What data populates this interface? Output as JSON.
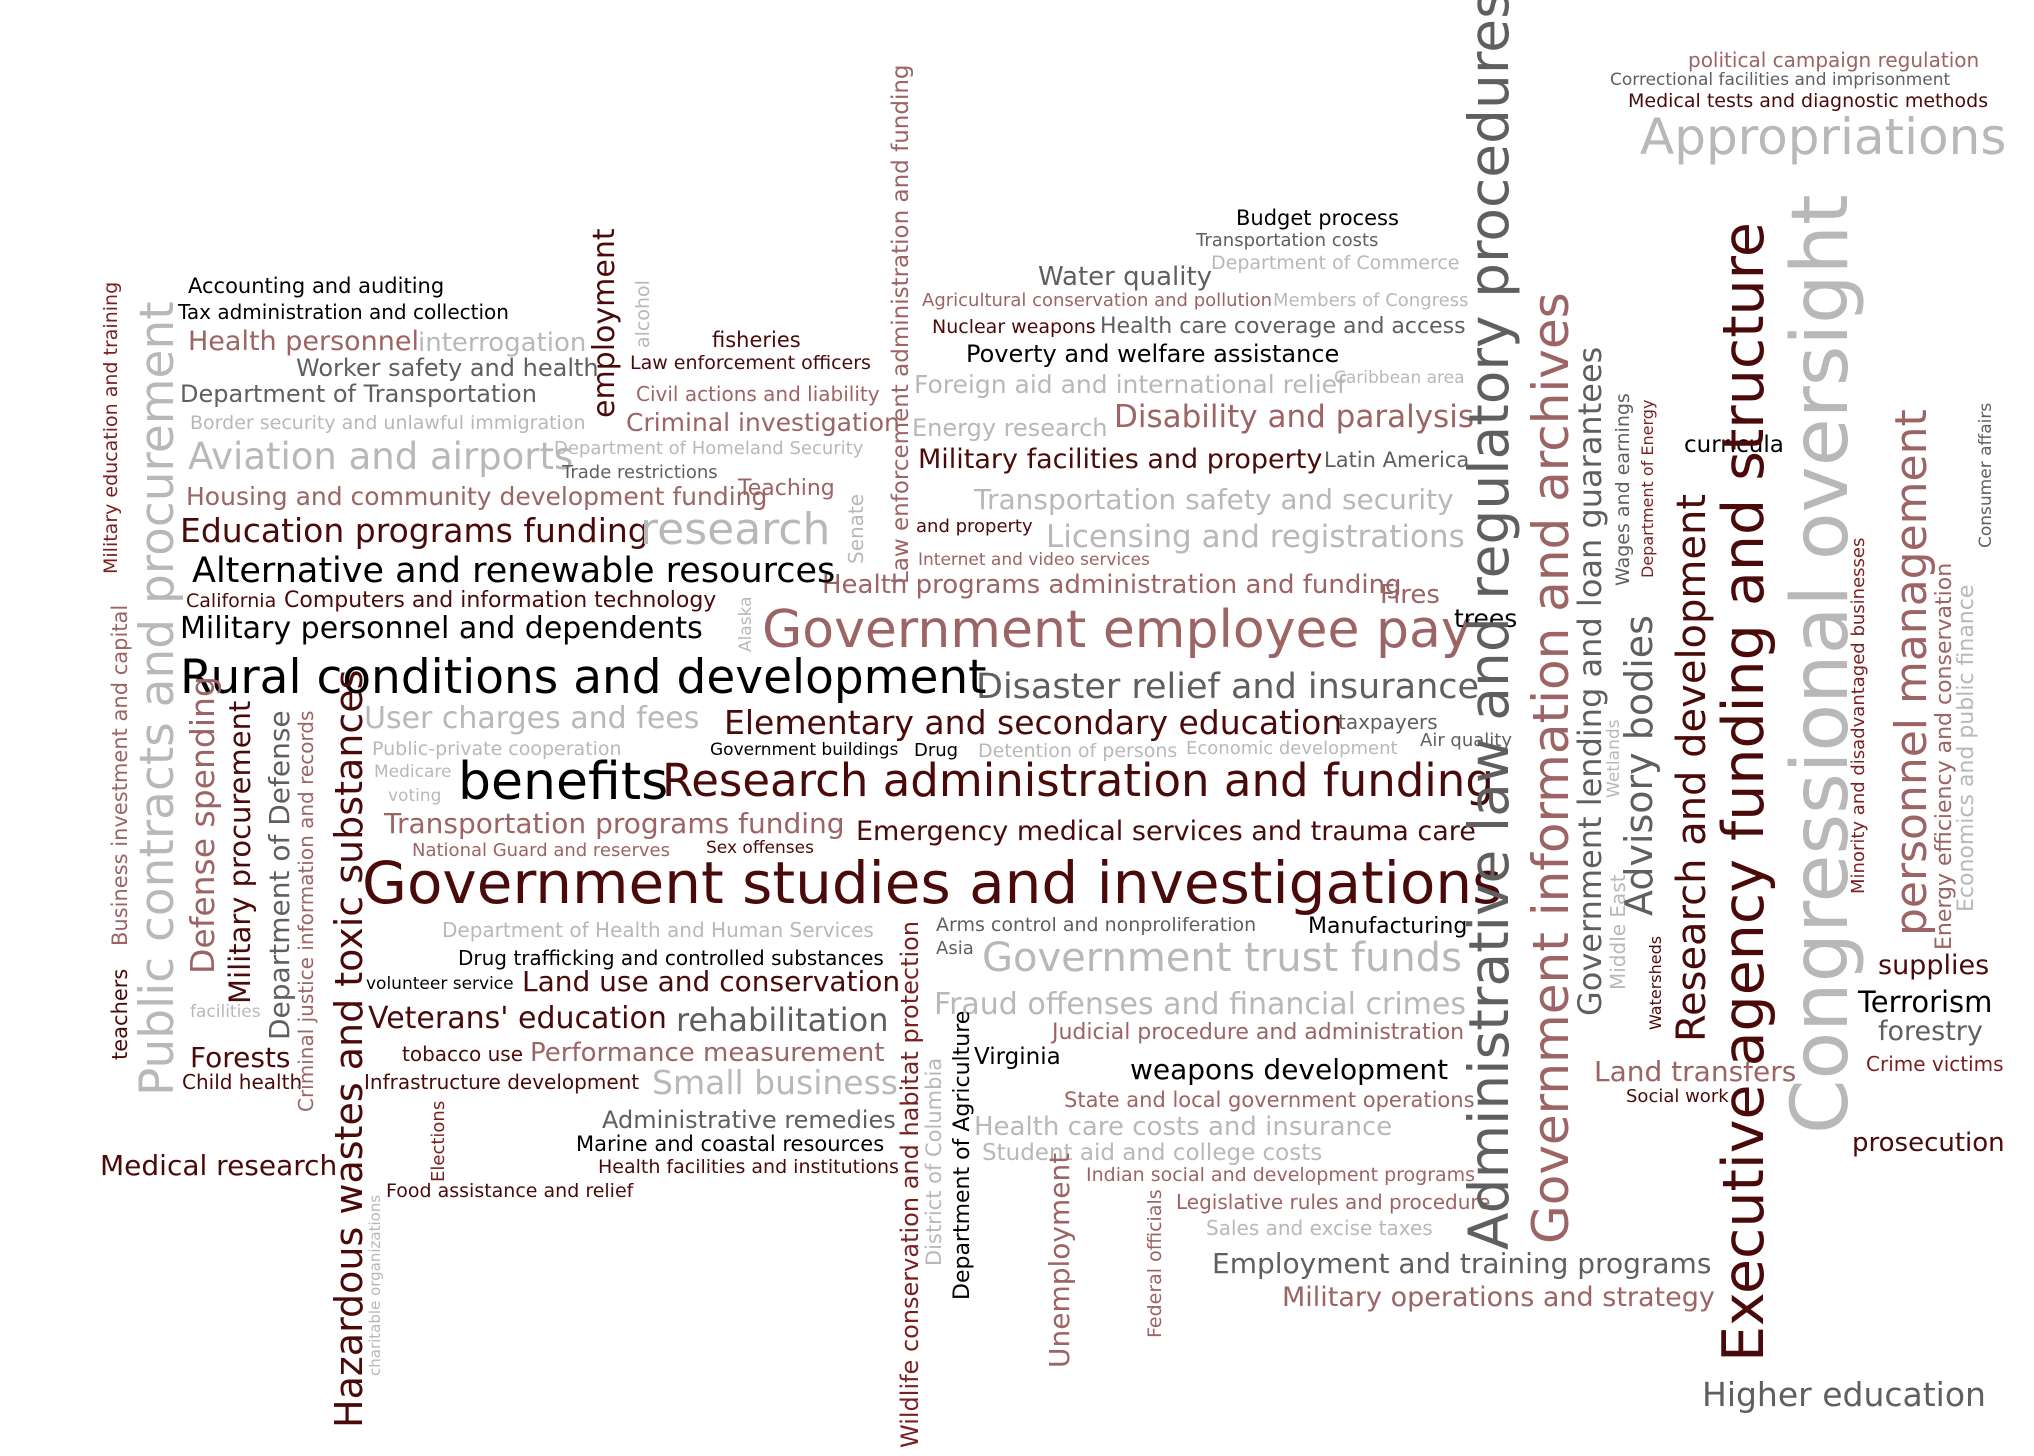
{
  "colors": {
    "c1": "#4a0a0a",
    "c2": "#7a1f1f",
    "c3": "#9c6464",
    "c4": "#5f5f5f",
    "c5": "#b8b8b8",
    "c6": "#000000"
  },
  "words": [
    "political campaign regulation",
    "Correctional facilities and imprisonment",
    "Medical tests and diagnostic methods",
    "Appropriations",
    "Budget process",
    "Transportation costs",
    "Department of Commerce",
    "Water quality",
    "Agricultural conservation and pollution",
    "Members of Congress",
    "Nuclear weapons",
    "Health care coverage and access",
    "Poverty and welfare assistance",
    "Foreign aid and international relief",
    "Caribbean area",
    "Energy research",
    "Disability and paralysis",
    "Military facilities and property",
    "Latin America",
    "Transportation safety and security",
    "and property",
    "Licensing and registrations",
    "Internet and video services",
    "Health programs administration and funding",
    "Fires",
    "Government employee pay",
    "trees",
    "Disaster relief and insurance",
    "Elementary and secondary education",
    "taxpayers",
    "Government buildings",
    "Drug",
    "Detention of persons",
    "Economic development",
    "Air quality",
    "Research administration and funding",
    "Emergency medical services and trauma care",
    "Government studies and investigations",
    "Arms control and nonproliferation",
    "Manufacturing",
    "Asia",
    "Government trust funds",
    "Fraud offenses and financial crimes",
    "Judicial procedure and administration",
    "Virginia",
    "weapons development",
    "State and local government operations",
    "Health care costs and insurance",
    "Student aid and college costs",
    "Indian social and development programs",
    "Legislative rules and procedure",
    "Sales and excise taxes",
    "Employment and training programs",
    "Military operations and strategy",
    "Higher education",
    "Accounting and auditing",
    "Tax administration and collection",
    "Health personnel",
    "interrogation",
    "Worker safety and health",
    "Department of Transportation",
    "Border security and unlawful immigration",
    "Aviation and airports",
    "Department of Homeland Security",
    "Trade restrictions",
    "Housing and community development funding",
    "Teaching",
    "Education programs funding",
    "research",
    "Alternative and renewable resources",
    "California",
    "Computers and information technology",
    "Military personnel and dependents",
    "Rural conditions and development",
    "User charges and fees",
    "Public-private cooperation",
    "Medicare",
    "voting",
    "benefits",
    "Transportation programs funding",
    "National Guard and reserves",
    "Sex offenses",
    "Department of Health and Human Services",
    "Drug trafficking and controlled substances",
    "volunteer service",
    "Land use and conservation",
    "Veterans' education",
    "rehabilitation",
    "facilities",
    "Forests",
    "tobacco use",
    "Performance measurement",
    "Child health",
    "Infrastructure development",
    "Small business",
    "Administrative remedies",
    "Marine and coastal resources",
    "Medical research",
    "Health facilities and institutions",
    "Food assistance and relief",
    "fisheries",
    "Law enforcement officers",
    "Civil actions and liability",
    "Criminal investigation",
    "curricula",
    "supplies",
    "Terrorism",
    "forestry",
    "Crime victims",
    "Land transfers",
    "Social work",
    "prosecution",
    "Military education and training",
    "Business investment and capital",
    "teachers",
    "Public contracts and procurement",
    "Defense spending",
    "Military procurement",
    "Department of Defense",
    "Criminal justice information and records",
    "Hazardous wastes and toxic substances",
    "charitable organizations",
    "Elections",
    "employment",
    "alcohol",
    "Senate",
    "Alaska",
    "Law enforcement administration and funding",
    "Wildlife conservation and habitat protection",
    "District of Columbia",
    "Department of Agriculture",
    "Unemployment",
    "Federal officials",
    "Administrative law and regulatory procedures",
    "Government information and archives",
    "Government lending and loan guarantees",
    "Middle East",
    "Advisory bodies",
    "Wages and earnings",
    "Wetlands",
    "Department of Energy",
    "Watersheds",
    "Research and development",
    "Executive agency funding and structure",
    "Congressional oversight",
    "Minority and disadvantaged businesses",
    "personnel management",
    "Energy efficiency and conservation",
    "Economics and public finance",
    "Consumer affairs"
  ]
}
